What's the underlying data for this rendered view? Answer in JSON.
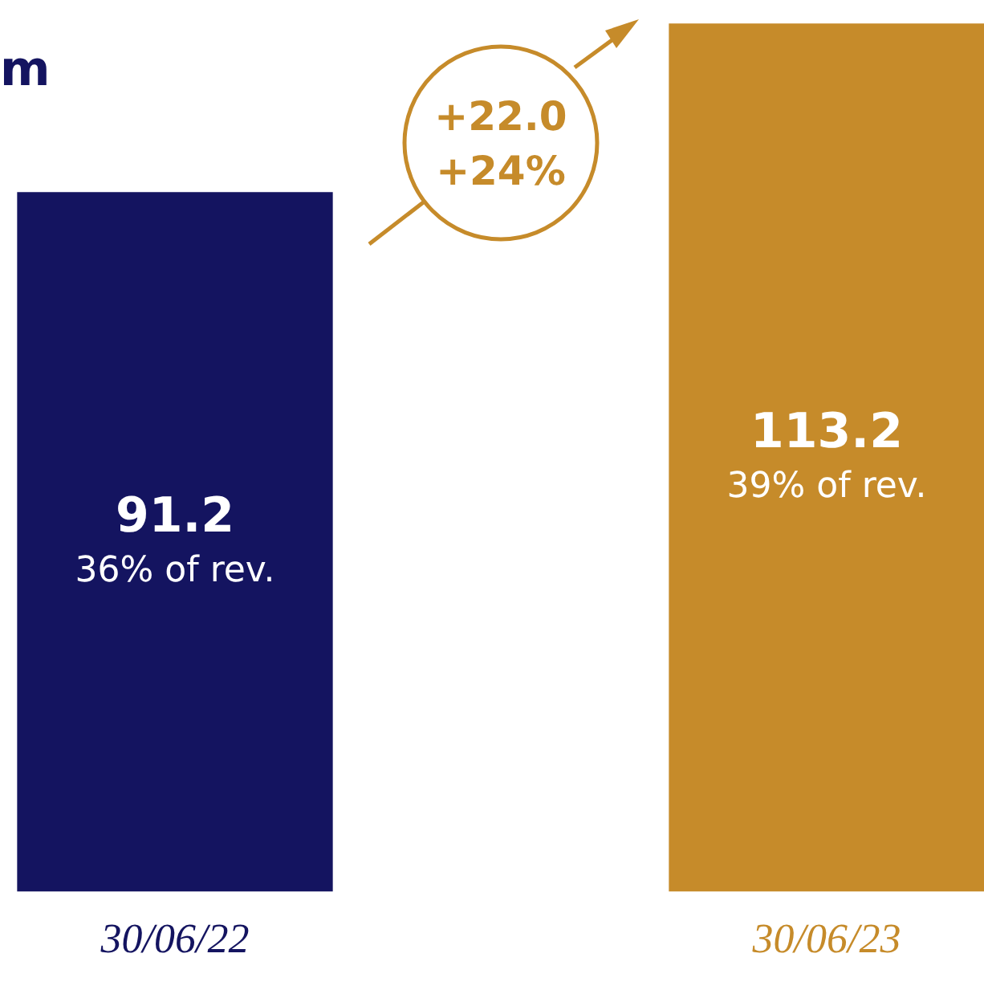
{
  "chart_data": {
    "type": "bar",
    "title": "m",
    "categories": [
      "30/06/22",
      "30/06/23"
    ],
    "values": [
      91.2,
      113.2
    ],
    "colors": [
      "#141460",
      "#c68b2a"
    ],
    "value_labels": [
      "91.2\n36% of rev.",
      "113.2\n39% of rev."
    ],
    "ylim": [
      0,
      113.2
    ],
    "annotations": [
      "+22.0",
      "+24%"
    ]
  }
}
